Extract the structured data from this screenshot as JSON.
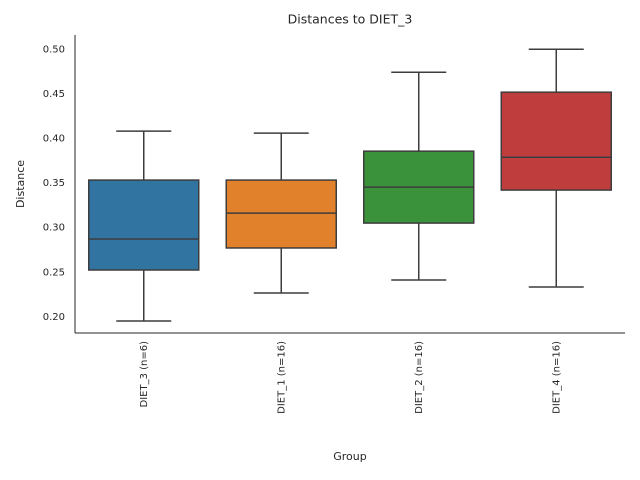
{
  "chart_data": {
    "type": "box",
    "title": "Distances to DIET_3",
    "x_label": "Group",
    "y_label": "Distance",
    "categories": [
      "DIET_3 (n=6)",
      "DIET_1 (n=16)",
      "DIET_2 (n=16)",
      "DIET_4 (n=16)"
    ],
    "colors": [
      "#3274a1",
      "#e1812c",
      "#3a923a",
      "#c03d3e"
    ],
    "boxes": [
      {
        "low": 0.1955,
        "q1": 0.2526,
        "median": 0.2873,
        "q3": 0.3534,
        "high": 0.4083
      },
      {
        "low": 0.2269,
        "q1": 0.2773,
        "median": 0.3164,
        "q3": 0.3534,
        "high": 0.406
      },
      {
        "low": 0.2414,
        "q1": 0.3052,
        "median": 0.3455,
        "q3": 0.3858,
        "high": 0.4742
      },
      {
        "low": 0.2336,
        "q1": 0.3422,
        "median": 0.379,
        "q3": 0.4519,
        "high": 0.5
      }
    ],
    "ylim": [
      0.182,
      0.516
    ],
    "yticks": [
      {
        "value": 0.2,
        "label": "0.20"
      },
      0.25,
      {
        "value": 0.3,
        "label": "0.30"
      },
      0.35,
      {
        "value": 0.4,
        "label": "0.40"
      },
      0.45,
      {
        "value": 0.5,
        "label": "0.50"
      }
    ],
    "grid": false
  }
}
